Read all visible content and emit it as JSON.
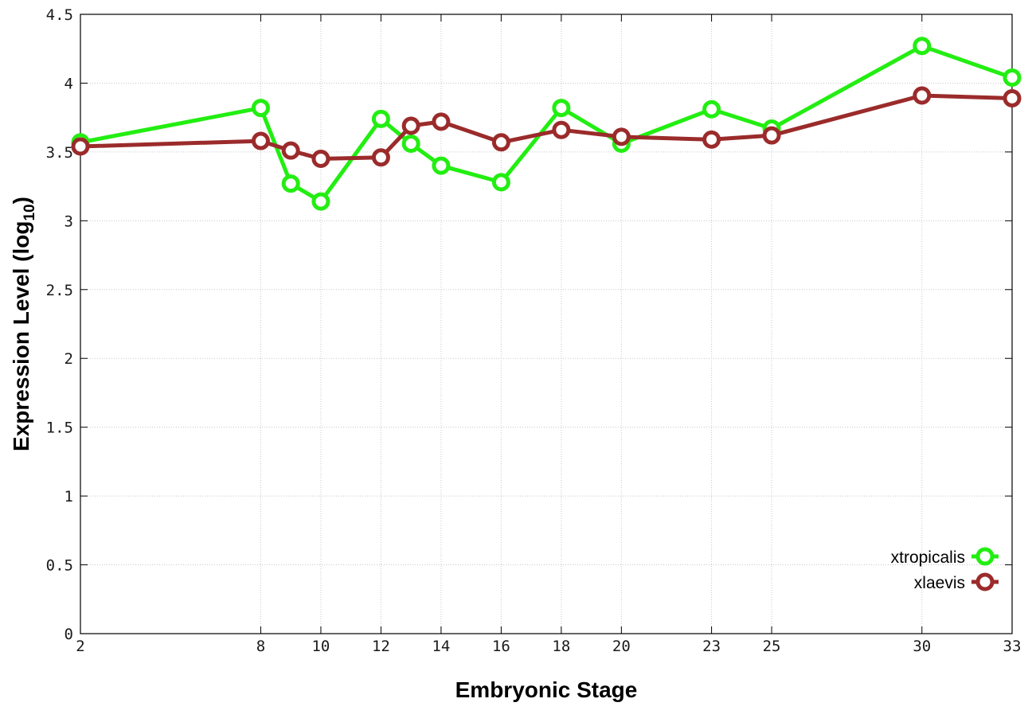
{
  "chart_data": {
    "type": "line",
    "xlabel": "Embryonic Stage",
    "ylabel": "Expression Level (log",
    "ylabel_subscript": "10",
    "ylabel_close": ")",
    "ylim": [
      0,
      4.5
    ],
    "xlim": [
      2,
      33
    ],
    "y_ticks": [
      0,
      0.5,
      1,
      1.5,
      2,
      2.5,
      3,
      3.5,
      4,
      4.5
    ],
    "y_tick_labels": [
      "0",
      "0.5",
      "1",
      "1.5",
      "2",
      "2.5",
      "3",
      "3.5",
      "4",
      "4.5"
    ],
    "x_ticks": [
      2,
      8,
      10,
      12,
      14,
      16,
      18,
      20,
      23,
      25,
      30,
      33
    ],
    "x_tick_labels": [
      "2",
      "8",
      "10",
      "12",
      "14",
      "16",
      "18",
      "20",
      "23",
      "25",
      "30",
      "33"
    ],
    "grid": true,
    "legend_position": "bottom-right",
    "series": [
      {
        "name": "xtropicalis",
        "color": "#22ee11",
        "x": [
          2,
          8,
          9,
          10,
          12,
          13,
          14,
          16,
          18,
          20,
          23,
          25,
          30,
          33
        ],
        "values": [
          3.57,
          3.82,
          3.27,
          3.14,
          3.74,
          3.56,
          3.4,
          3.28,
          3.82,
          3.56,
          3.81,
          3.67,
          4.27,
          4.04
        ]
      },
      {
        "name": "xlaevis",
        "color": "#9b2b2b",
        "x": [
          2,
          8,
          9,
          10,
          12,
          13,
          14,
          16,
          18,
          20,
          23,
          25,
          30,
          33
        ],
        "values": [
          3.54,
          3.58,
          3.51,
          3.45,
          3.46,
          3.69,
          3.72,
          3.57,
          3.66,
          3.61,
          3.59,
          3.62,
          3.91,
          3.89
        ]
      }
    ]
  }
}
